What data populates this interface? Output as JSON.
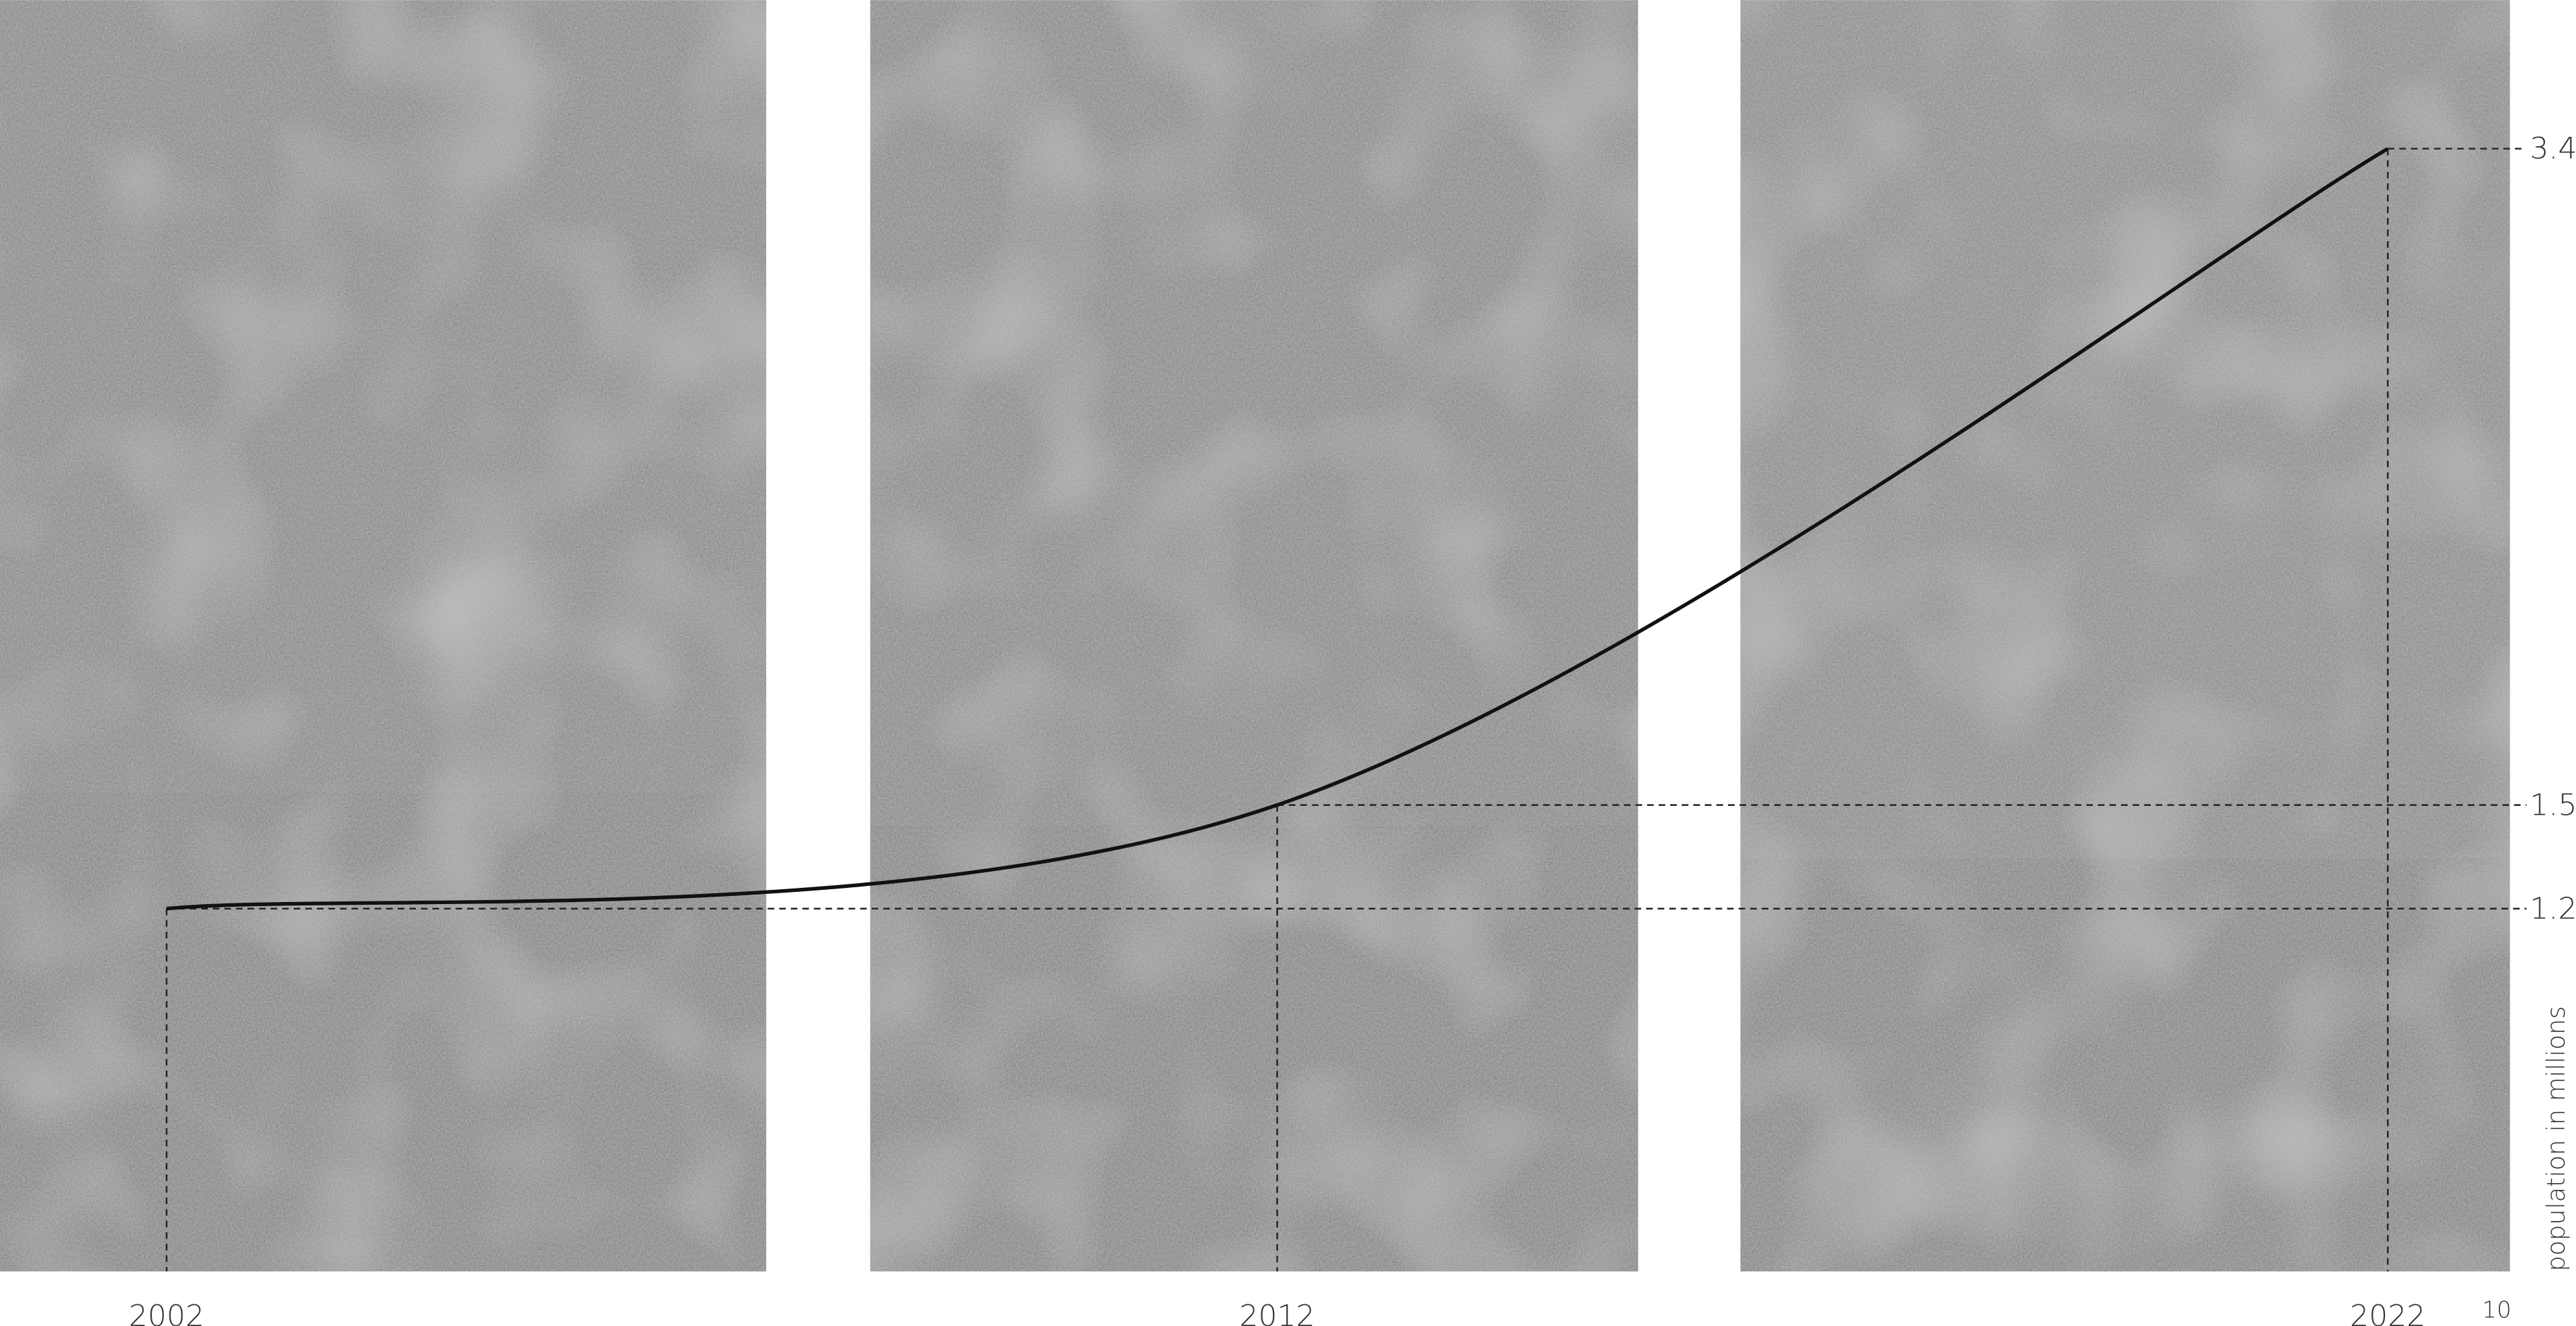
{
  "chart_data": {
    "type": "line",
    "x": [
      2002,
      2012,
      2022
    ],
    "values": [
      1.2,
      1.5,
      3.4
    ],
    "xlim": [
      2000.5,
      2023.1
    ],
    "ylim": [
      0.15,
      3.83
    ],
    "xticks": [
      2002,
      2012,
      2022
    ],
    "yticks": [
      1.2,
      1.5,
      3.4
    ],
    "ylabel": "population in millions",
    "page_number": "10",
    "color": "#111111"
  }
}
